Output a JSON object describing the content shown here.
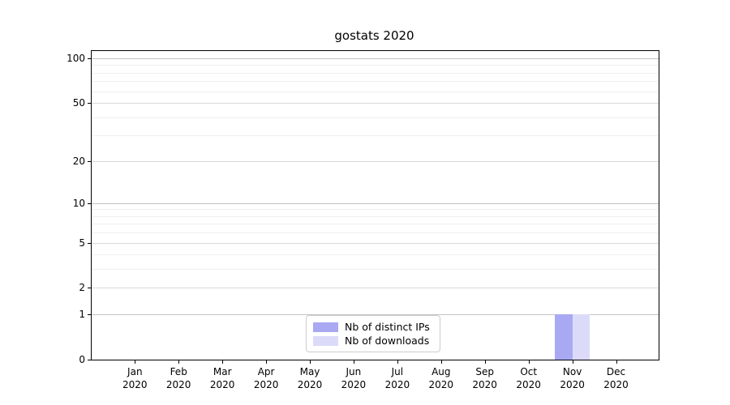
{
  "chart": {
    "title": "gostats 2020"
  },
  "chart_data": {
    "type": "bar",
    "title": "gostats 2020",
    "x_month_labels": [
      "Jan",
      "Feb",
      "Mar",
      "Apr",
      "May",
      "Jun",
      "Jul",
      "Aug",
      "Sep",
      "Oct",
      "Nov",
      "Dec"
    ],
    "x_year_label": "2020",
    "series": [
      {
        "name": "Nb of distinct IPs",
        "color": "#a9a9f3",
        "values": [
          0,
          0,
          0,
          0,
          0,
          0,
          0,
          0,
          0,
          0,
          1,
          0
        ]
      },
      {
        "name": "Nb of downloads",
        "color": "#dbdbf9",
        "values": [
          0,
          0,
          0,
          0,
          0,
          0,
          0,
          0,
          0,
          0,
          1,
          0
        ]
      }
    ],
    "yscale": "log1p",
    "ylim": [
      0,
      110
    ],
    "y_tick_labels": [
      0,
      1,
      2,
      5,
      10,
      20,
      50,
      100
    ],
    "y_gridlines_decade": [
      1,
      10,
      100
    ],
    "y_gridlines_mid": [
      2,
      5,
      20,
      50
    ],
    "y_gridlines_minor": [
      3,
      4,
      6,
      7,
      8,
      9,
      30,
      40,
      60,
      70,
      80,
      90
    ],
    "grid": "on",
    "legend_position": "lower center",
    "colors": {
      "distinct_ips": "#a9a9f3",
      "downloads": "#dbdbf9",
      "grid_major": "#c3c3c3",
      "grid_mid": "#d9d9d9",
      "grid_minor": "#efefef",
      "spine": "#000000"
    }
  }
}
